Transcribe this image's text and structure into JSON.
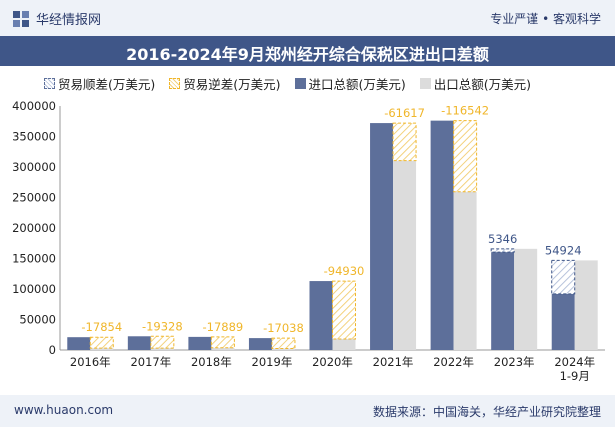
{
  "header": {
    "brand": "华经情报网",
    "slogan": "专业严谨 • 客观科学"
  },
  "title": "2016-2024年9月郑州经开综合保税区进出口差额",
  "legend": {
    "trade_surplus": "贸易顺差(万美元)",
    "trade_deficit": "贸易逆差(万美元)",
    "import": "进口总额(万美元)",
    "export": "出口总额(万美元)"
  },
  "colors": {
    "import": "#5d6f9a",
    "export": "#dcdcdc",
    "surplus_label": "#3f5688",
    "deficit_label": "#f0b62a",
    "deficit_border": "#f0b62a"
  },
  "footer": {
    "site": "www.huaon.com",
    "source": "数据来源：中国海关，华经产业研究院整理"
  },
  "chart_data": {
    "type": "bar",
    "categories": [
      "2016年",
      "2017年",
      "2018年",
      "2019年",
      "2020年",
      "2021年",
      "2022年",
      "2023年",
      "2024年\n1-9月"
    ],
    "series": [
      {
        "name": "进口总额(万美元)",
        "values": [
          21000,
          22500,
          21500,
          19500,
          113000,
          372000,
          376000,
          160500,
          92000
        ]
      },
      {
        "name": "出口总额(万美元)",
        "values": [
          3146,
          3172,
          3611,
          2462,
          18070,
          310383,
          259458,
          165846,
          146924
        ]
      }
    ],
    "balance": [
      -17854,
      -19328,
      -17889,
      -17038,
      -94930,
      -61617,
      -116542,
      5346,
      54924
    ],
    "balance_labels": [
      "-17854",
      "-19328",
      "-17889",
      "-17038",
      "-94930",
      "-61617",
      "-116542",
      "5346",
      "54924"
    ],
    "ylim": [
      0,
      400000
    ],
    "yticks": [
      "0",
      "50000",
      "100000",
      "150000",
      "200000",
      "250000",
      "300000",
      "350000",
      "400000"
    ],
    "ytick_values": [
      0,
      50000,
      100000,
      150000,
      200000,
      250000,
      300000,
      350000,
      400000
    ],
    "legend_position": "top"
  }
}
